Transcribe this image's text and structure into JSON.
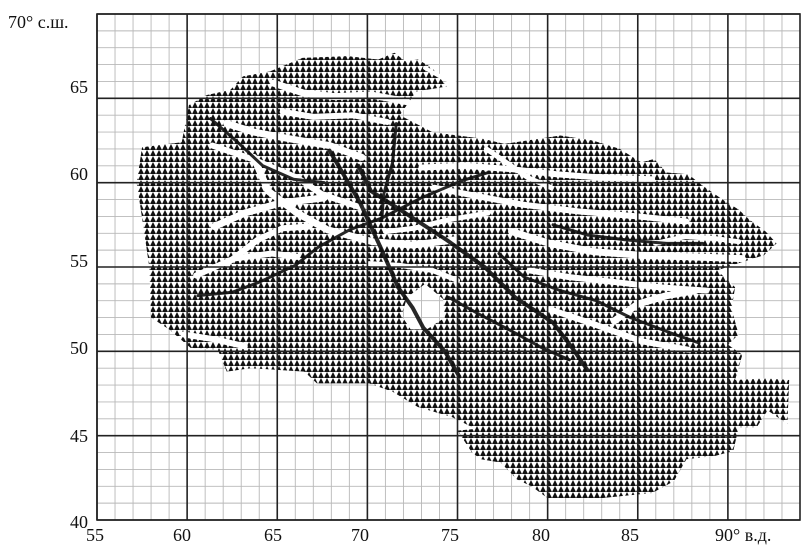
{
  "map": {
    "x_axis": {
      "ticks": [
        55,
        60,
        65,
        70,
        75,
        80,
        85,
        90
      ],
      "tick_labels": [
        "55",
        "60",
        "65",
        "70",
        "75",
        "80",
        "85",
        "90° в.д."
      ],
      "range": [
        55,
        94
      ]
    },
    "y_axis": {
      "ticks": [
        40,
        45,
        50,
        55,
        60,
        65,
        70
      ],
      "tick_labels": [
        "40",
        "45",
        "50",
        "55",
        "60",
        "65",
        "70° с.ш."
      ],
      "range": [
        40,
        70
      ]
    },
    "grid": {
      "major_step_degrees": 5,
      "minor_step_degrees": 1
    },
    "colors": {
      "background": "#ffffff",
      "minor_grid": "#b8b8b8",
      "major_grid": "#222222",
      "hatch_fill": "#111111"
    },
    "region_outline": [
      [
        57.5,
        62.1
      ],
      [
        59.7,
        62.4
      ],
      [
        60.1,
        64.6
      ],
      [
        61.1,
        65.2
      ],
      [
        62.4,
        65.5
      ],
      [
        63.1,
        66.3
      ],
      [
        64.6,
        66.6
      ],
      [
        66.4,
        67.4
      ],
      [
        68.9,
        67.5
      ],
      [
        70.6,
        67.3
      ],
      [
        71.5,
        67.7
      ],
      [
        72.1,
        67.2
      ],
      [
        72.8,
        67.3
      ],
      [
        73.6,
        66.8
      ],
      [
        74.1,
        66.1
      ],
      [
        74.4,
        65.7
      ],
      [
        72.7,
        65.4
      ],
      [
        71.8,
        64.0
      ],
      [
        73.6,
        63.0
      ],
      [
        76.4,
        62.6
      ],
      [
        77.6,
        62.3
      ],
      [
        80.7,
        62.8
      ],
      [
        82.5,
        62.5
      ],
      [
        84.0,
        62.0
      ],
      [
        85.2,
        61.2
      ],
      [
        85.9,
        61.4
      ],
      [
        86.6,
        60.6
      ],
      [
        87.8,
        60.5
      ],
      [
        88.5,
        59.9
      ],
      [
        89.7,
        59.0
      ],
      [
        90.6,
        58.4
      ],
      [
        91.2,
        57.8
      ],
      [
        92.1,
        57.1
      ],
      [
        92.7,
        56.4
      ],
      [
        92.0,
        55.7
      ],
      [
        90.8,
        55.3
      ],
      [
        89.4,
        54.8
      ],
      [
        90.4,
        53.8
      ],
      [
        90.2,
        52.5
      ],
      [
        90.6,
        51.0
      ],
      [
        90.0,
        50.4
      ],
      [
        90.8,
        49.8
      ],
      [
        90.4,
        48.3
      ],
      [
        92.1,
        48.4
      ],
      [
        93.4,
        48.3
      ],
      [
        93.3,
        45.7
      ],
      [
        92.2,
        46.5
      ],
      [
        91.6,
        45.5
      ],
      [
        90.6,
        45.5
      ],
      [
        90.3,
        44.1
      ],
      [
        89.3,
        43.8
      ],
      [
        87.7,
        43.6
      ],
      [
        87.0,
        42.3
      ],
      [
        85.8,
        41.6
      ],
      [
        83.0,
        41.3
      ],
      [
        80.0,
        41.3
      ],
      [
        79.1,
        42.0
      ],
      [
        78.3,
        42.4
      ],
      [
        77.4,
        43.4
      ],
      [
        76.3,
        43.6
      ],
      [
        75.8,
        44.0
      ],
      [
        75.0,
        45.3
      ],
      [
        76.0,
        45.4
      ],
      [
        74.7,
        46.1
      ],
      [
        72.8,
        46.7
      ],
      [
        71.4,
        47.6
      ],
      [
        70.1,
        48.1
      ],
      [
        67.2,
        48.1
      ],
      [
        66.5,
        48.8
      ],
      [
        63.5,
        49.0
      ],
      [
        62.2,
        48.8
      ],
      [
        61.7,
        50.1
      ],
      [
        60.2,
        50.2
      ],
      [
        59.0,
        51.3
      ],
      [
        58.0,
        52.0
      ],
      [
        57.9,
        55.0
      ],
      [
        57.6,
        57.2
      ],
      [
        57.2,
        60.0
      ]
    ],
    "clearings": [
      {
        "points": [
          [
            71.9,
            52.1
          ],
          [
            72.2,
            53.2
          ],
          [
            73.2,
            54.0
          ],
          [
            74.2,
            53.1
          ],
          [
            74.3,
            52.0
          ],
          [
            73.3,
            51.3
          ],
          [
            72.4,
            51.3
          ]
        ]
      }
    ],
    "streams": [
      {
        "width": 7,
        "points": [
          [
            62.2,
            63.5
          ],
          [
            63.7,
            63.0
          ],
          [
            65.7,
            62.6
          ],
          [
            67.9,
            62.2
          ],
          [
            69.7,
            61.5
          ]
        ]
      },
      {
        "width": 6,
        "points": [
          [
            61.4,
            62.2
          ],
          [
            63.6,
            61.4
          ],
          [
            66.1,
            60.3
          ],
          [
            67.5,
            59.3
          ],
          [
            69.7,
            58.5
          ]
        ]
      },
      {
        "width": 7,
        "points": [
          [
            63.7,
            61.5
          ],
          [
            64.5,
            59.5
          ],
          [
            66.1,
            58.2
          ],
          [
            67.8,
            57.2
          ],
          [
            70.3,
            56.5
          ],
          [
            72.5,
            56.3
          ],
          [
            74.8,
            56.6
          ]
        ]
      },
      {
        "width": 7,
        "points": [
          [
            64.8,
            65.9
          ],
          [
            66.5,
            65.3
          ],
          [
            68.2,
            65.1
          ],
          [
            70.2,
            65.2
          ],
          [
            72.2,
            64.8
          ]
        ]
      },
      {
        "width": 6,
        "points": [
          [
            65.3,
            64.2
          ],
          [
            67.0,
            63.9
          ],
          [
            69.2,
            64.0
          ],
          [
            71.1,
            63.6
          ]
        ]
      },
      {
        "width": 6,
        "points": [
          [
            62.2,
            55.2
          ],
          [
            63.9,
            56.6
          ],
          [
            65.3,
            57.3
          ],
          [
            66.8,
            57.4
          ]
        ]
      },
      {
        "width": 6,
        "points": [
          [
            60.5,
            54.5
          ],
          [
            62.6,
            55.5
          ],
          [
            64.7,
            55.8
          ],
          [
            66.1,
            55.6
          ]
        ]
      },
      {
        "width": 7,
        "points": [
          [
            61.5,
            57.4
          ],
          [
            63.2,
            58.2
          ],
          [
            65.2,
            58.8
          ],
          [
            67.6,
            59.1
          ]
        ]
      },
      {
        "width": 6,
        "points": [
          [
            73.0,
            60.9
          ],
          [
            75.4,
            61.0
          ],
          [
            78.0,
            60.8
          ],
          [
            80.5,
            60.5
          ],
          [
            83.0,
            60.3
          ],
          [
            85.8,
            60.2
          ]
        ]
      },
      {
        "width": 6,
        "points": [
          [
            73.7,
            59.7
          ],
          [
            76.1,
            59.2
          ],
          [
            78.6,
            58.7
          ],
          [
            81.7,
            58.3
          ],
          [
            85.0,
            58.0
          ],
          [
            87.7,
            57.7
          ]
        ]
      },
      {
        "width": 7,
        "points": [
          [
            78.0,
            57.1
          ],
          [
            80.1,
            56.4
          ],
          [
            82.6,
            55.9
          ],
          [
            85.1,
            55.7
          ],
          [
            88.0,
            55.6
          ],
          [
            90.8,
            55.5
          ]
        ]
      },
      {
        "width": 6,
        "points": [
          [
            79.0,
            54.8
          ],
          [
            81.2,
            54.4
          ],
          [
            83.8,
            54.1
          ],
          [
            86.2,
            53.8
          ],
          [
            88.8,
            53.6
          ]
        ]
      },
      {
        "width": 7,
        "points": [
          [
            83.7,
            51.8
          ],
          [
            85.0,
            52.8
          ],
          [
            86.6,
            53.3
          ],
          [
            88.2,
            53.6
          ]
        ]
      },
      {
        "width": 6,
        "points": [
          [
            80.1,
            52.5
          ],
          [
            82.6,
            51.6
          ],
          [
            85.2,
            50.6
          ],
          [
            87.8,
            50.1
          ]
        ]
      },
      {
        "width": 5,
        "points": [
          [
            71.0,
            57.1
          ],
          [
            72.6,
            57.3
          ],
          [
            74.5,
            57.8
          ],
          [
            76.7,
            58.2
          ]
        ]
      },
      {
        "width": 5,
        "points": [
          [
            70.1,
            55.2
          ],
          [
            71.8,
            55.1
          ],
          [
            73.6,
            54.8
          ],
          [
            75.0,
            54.2
          ]
        ]
      },
      {
        "width": 5,
        "points": [
          [
            86.0,
            56.4
          ],
          [
            87.6,
            56.8
          ],
          [
            89.2,
            56.7
          ],
          [
            90.6,
            56.5
          ]
        ]
      },
      {
        "width": 5,
        "points": [
          [
            76.6,
            62.0
          ],
          [
            77.7,
            61.2
          ],
          [
            78.9,
            60.3
          ],
          [
            80.2,
            59.7
          ]
        ]
      },
      {
        "width": 4,
        "points": [
          [
            73.2,
            66.8
          ],
          [
            74.2,
            66.2
          ],
          [
            75.1,
            65.8
          ]
        ]
      },
      {
        "width": 6,
        "points": [
          [
            59.8,
            51.0
          ],
          [
            61.6,
            50.7
          ],
          [
            63.2,
            50.3
          ]
        ]
      }
    ],
    "dark_paths": [
      {
        "width": 4,
        "points": [
          [
            69.5,
            61.0
          ],
          [
            70.2,
            59.5
          ],
          [
            72.1,
            58.2
          ],
          [
            74.4,
            56.6
          ],
          [
            76.5,
            55.0
          ],
          [
            78.2,
            53.2
          ],
          [
            80.3,
            51.7
          ],
          [
            81.3,
            50.3
          ],
          [
            82.2,
            48.9
          ]
        ]
      },
      {
        "width": 4,
        "points": [
          [
            67.9,
            61.9
          ],
          [
            69.6,
            58.8
          ],
          [
            70.8,
            56.0
          ],
          [
            71.7,
            53.8
          ],
          [
            72.5,
            52.6
          ],
          [
            73.1,
            51.4
          ],
          [
            74.3,
            50.0
          ],
          [
            75.1,
            48.5
          ]
        ]
      },
      {
        "width": 3,
        "points": [
          [
            60.6,
            53.3
          ],
          [
            62.5,
            53.5
          ],
          [
            64.0,
            54.1
          ],
          [
            66.0,
            55.1
          ],
          [
            67.3,
            56.2
          ],
          [
            69.0,
            57.2
          ],
          [
            70.8,
            57.9
          ],
          [
            73.0,
            59.1
          ],
          [
            75.2,
            60.1
          ],
          [
            76.7,
            60.6
          ]
        ]
      },
      {
        "width": 3,
        "points": [
          [
            74.5,
            53.2
          ],
          [
            76.2,
            52.2
          ],
          [
            78.0,
            51.2
          ],
          [
            79.7,
            50.2
          ],
          [
            81.2,
            49.5
          ]
        ]
      },
      {
        "width": 3,
        "points": [
          [
            77.3,
            55.8
          ],
          [
            78.7,
            54.4
          ],
          [
            80.7,
            53.6
          ],
          [
            82.7,
            53.0
          ],
          [
            84.6,
            52.0
          ],
          [
            86.8,
            51.1
          ],
          [
            88.4,
            50.5
          ]
        ]
      },
      {
        "width": 3,
        "points": [
          [
            80.3,
            57.5
          ],
          [
            82.2,
            56.9
          ],
          [
            84.4,
            56.6
          ],
          [
            86.6,
            56.4
          ],
          [
            88.6,
            56.4
          ]
        ]
      },
      {
        "width": 3,
        "points": [
          [
            71.6,
            63.5
          ],
          [
            71.4,
            61.2
          ],
          [
            70.9,
            59.3
          ],
          [
            70.8,
            57.8
          ]
        ]
      },
      {
        "width": 3,
        "points": [
          [
            61.3,
            63.8
          ],
          [
            62.8,
            62.4
          ],
          [
            64.2,
            61.0
          ],
          [
            65.9,
            60.2
          ],
          [
            67.6,
            60.0
          ]
        ]
      }
    ]
  }
}
